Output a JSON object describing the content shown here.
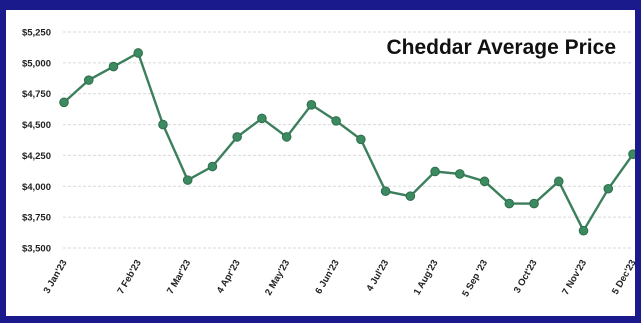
{
  "chart_data": {
    "type": "line",
    "title": "Cheddar Average Price",
    "xlabel": "",
    "ylabel": "",
    "ylim": [
      3500,
      5250
    ],
    "yticks": [
      "$3,500",
      "$3,750",
      "$4,000",
      "$4,250",
      "$4,500",
      "$4,750",
      "$5,000",
      "$5,250"
    ],
    "ytick_values": [
      3500,
      3750,
      4000,
      4250,
      4500,
      4750,
      5000,
      5250
    ],
    "grid": true,
    "x_tick_labels": [
      "3 Jan'23",
      "7 Feb'23",
      "7 Mar'23",
      "4 Apr'23",
      "2 May'23",
      "6 Jun'23",
      "4 Jul'23",
      "1 Aug'23",
      "5 Sep '23",
      "3 Oct'23",
      "7 Nov'23",
      "5 Dec'23"
    ],
    "x_tick_positions": [
      0,
      3,
      5,
      7,
      9,
      11,
      13,
      15,
      17,
      19,
      21,
      23
    ],
    "series": [
      {
        "color": "#3c7f5c",
        "values": [
          4680,
          4860,
          4970,
          5080,
          4500,
          4050,
          4160,
          4400,
          4550,
          4400,
          4660,
          4530,
          4380,
          3960,
          3920,
          4120,
          4100,
          4040,
          3860,
          3860,
          4040,
          3640,
          3980,
          4260
        ]
      }
    ]
  }
}
